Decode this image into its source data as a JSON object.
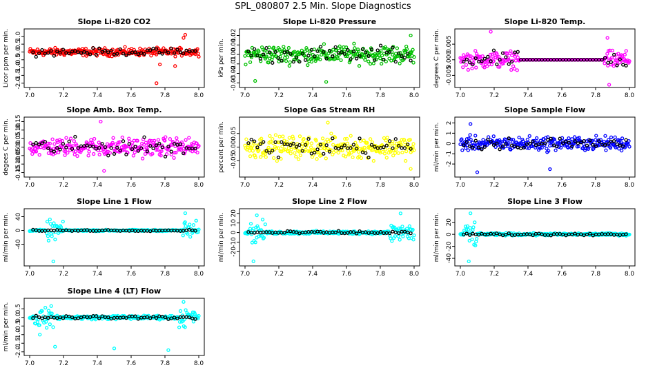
{
  "main_title": "SPL_080807  2.5 Min. Slope Diagnostics",
  "chart_data": [
    {
      "type": "scatter",
      "title": "Slope Li-820 CO2",
      "ylabel": "Licor ppm per min.",
      "color": "#ff0000",
      "xlim": [
        7.0,
        8.0
      ],
      "ylim": [
        -2.1,
        1.3
      ],
      "x_ticks": [
        "7.0",
        "7.2",
        "7.4",
        "7.6",
        "7.8",
        "8.0"
      ],
      "y_ticks": [
        "-2.0",
        "-1.5",
        "-1.0",
        "-0.5",
        "0.0",
        "0.5",
        "1.0"
      ],
      "series_spread": 0.18,
      "outliers": [
        {
          "x": 7.77,
          "y": -0.8
        },
        {
          "x": 7.86,
          "y": -0.9
        },
        {
          "x": 7.92,
          "y": 1.1
        },
        {
          "x": 7.75,
          "y": -2.0
        },
        {
          "x": 7.91,
          "y": 0.9
        }
      ]
    },
    {
      "type": "scatter",
      "title": "Slope Li-820 Pressure",
      "ylabel": "kPa per min.",
      "color": "#00c000",
      "xlim": [
        7.0,
        8.0
      ],
      "ylim": [
        -0.032,
        0.024
      ],
      "x_ticks": [
        "7.0",
        "7.2",
        "7.4",
        "7.6",
        "7.8",
        "8.0"
      ],
      "y_ticks": [
        "-0.03",
        "-0.02",
        "-0.01",
        "0.00",
        "0.01",
        "0.02"
      ],
      "series_spread": 0.007,
      "outliers": [
        {
          "x": 7.06,
          "y": -0.028
        },
        {
          "x": 7.48,
          "y": -0.029
        },
        {
          "x": 7.98,
          "y": 0.02
        }
      ]
    },
    {
      "type": "scatter",
      "title": "Slope Li-820 Temp.",
      "ylabel": "degrees C per min.",
      "color": "#ff00ff",
      "xlim": [
        7.0,
        8.0
      ],
      "ylim": [
        -0.008,
        0.009
      ],
      "x_ticks": [
        "7.0",
        "7.2",
        "7.4",
        "7.6",
        "7.8",
        "8.0"
      ],
      "y_ticks": [
        "-0.005",
        "0.000",
        "0.005"
      ],
      "series_spread": 0.002,
      "flat_from": 7.35,
      "flat_to": 7.85,
      "outliers": [
        {
          "x": 7.18,
          "y": 0.009
        },
        {
          "x": 7.87,
          "y": 0.007
        },
        {
          "x": 7.88,
          "y": -0.008
        }
      ]
    },
    {
      "type": "scatter",
      "title": "Slope Amb. Box Temp.",
      "ylabel": "degees C per min.",
      "color": "#ff00ff",
      "xlim": [
        7.0,
        8.0
      ],
      "ylim": [
        -0.16,
        0.16
      ],
      "x_ticks": [
        "7.0",
        "7.2",
        "7.4",
        "7.6",
        "7.8",
        "8.0"
      ],
      "y_ticks": [
        "-0.15",
        "-0.10",
        "-0.05",
        "0.00",
        "0.05",
        "0.10",
        "0.15"
      ],
      "series_spread": 0.04,
      "outliers": [
        {
          "x": 7.42,
          "y": 0.15
        },
        {
          "x": 7.44,
          "y": -0.14
        }
      ]
    },
    {
      "type": "scatter",
      "title": "Slope Gas Stream RH",
      "ylabel": "percent per min.",
      "color": "#ffff00",
      "xlim": [
        7.0,
        8.0
      ],
      "ylim": [
        -0.1,
        0.1
      ],
      "x_ticks": [
        "7.0",
        "7.2",
        "7.4",
        "7.6",
        "7.8",
        "8.0"
      ],
      "y_ticks": [
        "-0.05",
        "0.00",
        "0.05"
      ],
      "series_spread": 0.03,
      "outliers": [
        {
          "x": 7.49,
          "y": 0.09
        },
        {
          "x": 7.98,
          "y": -0.08
        }
      ]
    },
    {
      "type": "scatter",
      "title": "Slope Sample Flow",
      "ylabel": "ml/min per min.",
      "color": "#0000ff",
      "xlim": [
        7.0,
        8.0
      ],
      "ylim": [
        -3.0,
        2.3
      ],
      "x_ticks": [
        "7.0",
        "7.2",
        "7.4",
        "7.6",
        "7.8",
        "8.0"
      ],
      "y_ticks": [
        "-2",
        "-1",
        "0",
        "1",
        "2"
      ],
      "series_spread": 0.5,
      "outliers": [
        {
          "x": 7.06,
          "y": 1.9
        },
        {
          "x": 7.1,
          "y": -2.8
        },
        {
          "x": 7.53,
          "y": -2.5
        }
      ]
    },
    {
      "type": "scatter",
      "title": "Slope Line 1 Flow",
      "ylabel": "ml/min per min.",
      "color": "#00ffff",
      "xlim": [
        7.0,
        8.0
      ],
      "ylim": [
        -95,
        55
      ],
      "x_ticks": [
        "7.0",
        "7.2",
        "7.4",
        "7.6",
        "7.8",
        "8.0"
      ],
      "y_ticks": [
        "-40",
        "0",
        "40"
      ],
      "series_spread": 1.5,
      "burst": [
        [
          7.1,
          7.2
        ],
        [
          7.9,
          8.0
        ]
      ],
      "burst_spread": 20,
      "outliers": [
        {
          "x": 7.14,
          "y": -90
        },
        {
          "x": 7.92,
          "y": 50
        }
      ]
    },
    {
      "type": "scatter",
      "title": "Slope Line 2 Flow",
      "ylabel": "ml/min per min.",
      "color": "#00ffff",
      "xlim": [
        7.0,
        8.0
      ],
      "ylim": [
        -32,
        22
      ],
      "x_ticks": [
        "7.0",
        "7.2",
        "7.4",
        "7.6",
        "7.8",
        "8.0"
      ],
      "y_ticks": [
        "-20",
        "-10",
        "0",
        "10",
        "20"
      ],
      "series_spread": 1.2,
      "burst": [
        [
          7.03,
          7.12
        ],
        [
          7.85,
          8.0
        ]
      ],
      "burst_spread": 8,
      "outliers": [
        {
          "x": 7.05,
          "y": -30
        },
        {
          "x": 7.92,
          "y": 20
        },
        {
          "x": 7.07,
          "y": 18
        }
      ]
    },
    {
      "type": "scatter",
      "title": "Slope Line 3 Flow",
      "ylabel": "ml/min per min.",
      "color": "#00ffff",
      "xlim": [
        7.0,
        8.0
      ],
      "ylim": [
        -48,
        38
      ],
      "x_ticks": [
        "7.0",
        "7.2",
        "7.4",
        "7.6",
        "7.8",
        "8.0"
      ],
      "y_ticks": [
        "-40",
        "-20",
        "0",
        "20"
      ],
      "series_spread": 1.5,
      "burst": [
        [
          7.02,
          7.1
        ]
      ],
      "burst_spread": 15,
      "outliers": [
        {
          "x": 7.05,
          "y": -45
        },
        {
          "x": 7.06,
          "y": 35
        }
      ]
    },
    {
      "type": "scatter",
      "title": "Slope Line 4 (LT) Flow",
      "ylabel": "ml/min per min.",
      "color": "#00ffff",
      "xlim": [
        7.0,
        8.0
      ],
      "ylim": [
        -2.05,
        0.95
      ],
      "x_ticks": [
        "7.0",
        "7.2",
        "7.4",
        "7.6",
        "7.8",
        "8.0"
      ],
      "y_ticks": [
        "-2.0",
        "-1.5",
        "-1.0",
        "-0.5",
        "0.0",
        "0.5"
      ],
      "series_spread": 0.08,
      "burst": [
        [
          7.03,
          7.15
        ],
        [
          7.88,
          7.98
        ]
      ],
      "burst_spread": 0.4,
      "outliers": [
        {
          "x": 7.15,
          "y": -1.7
        },
        {
          "x": 7.5,
          "y": -1.8
        },
        {
          "x": 7.82,
          "y": -1.9
        },
        {
          "x": 7.91,
          "y": 0.9
        },
        {
          "x": 7.06,
          "y": -1.0
        }
      ]
    }
  ]
}
